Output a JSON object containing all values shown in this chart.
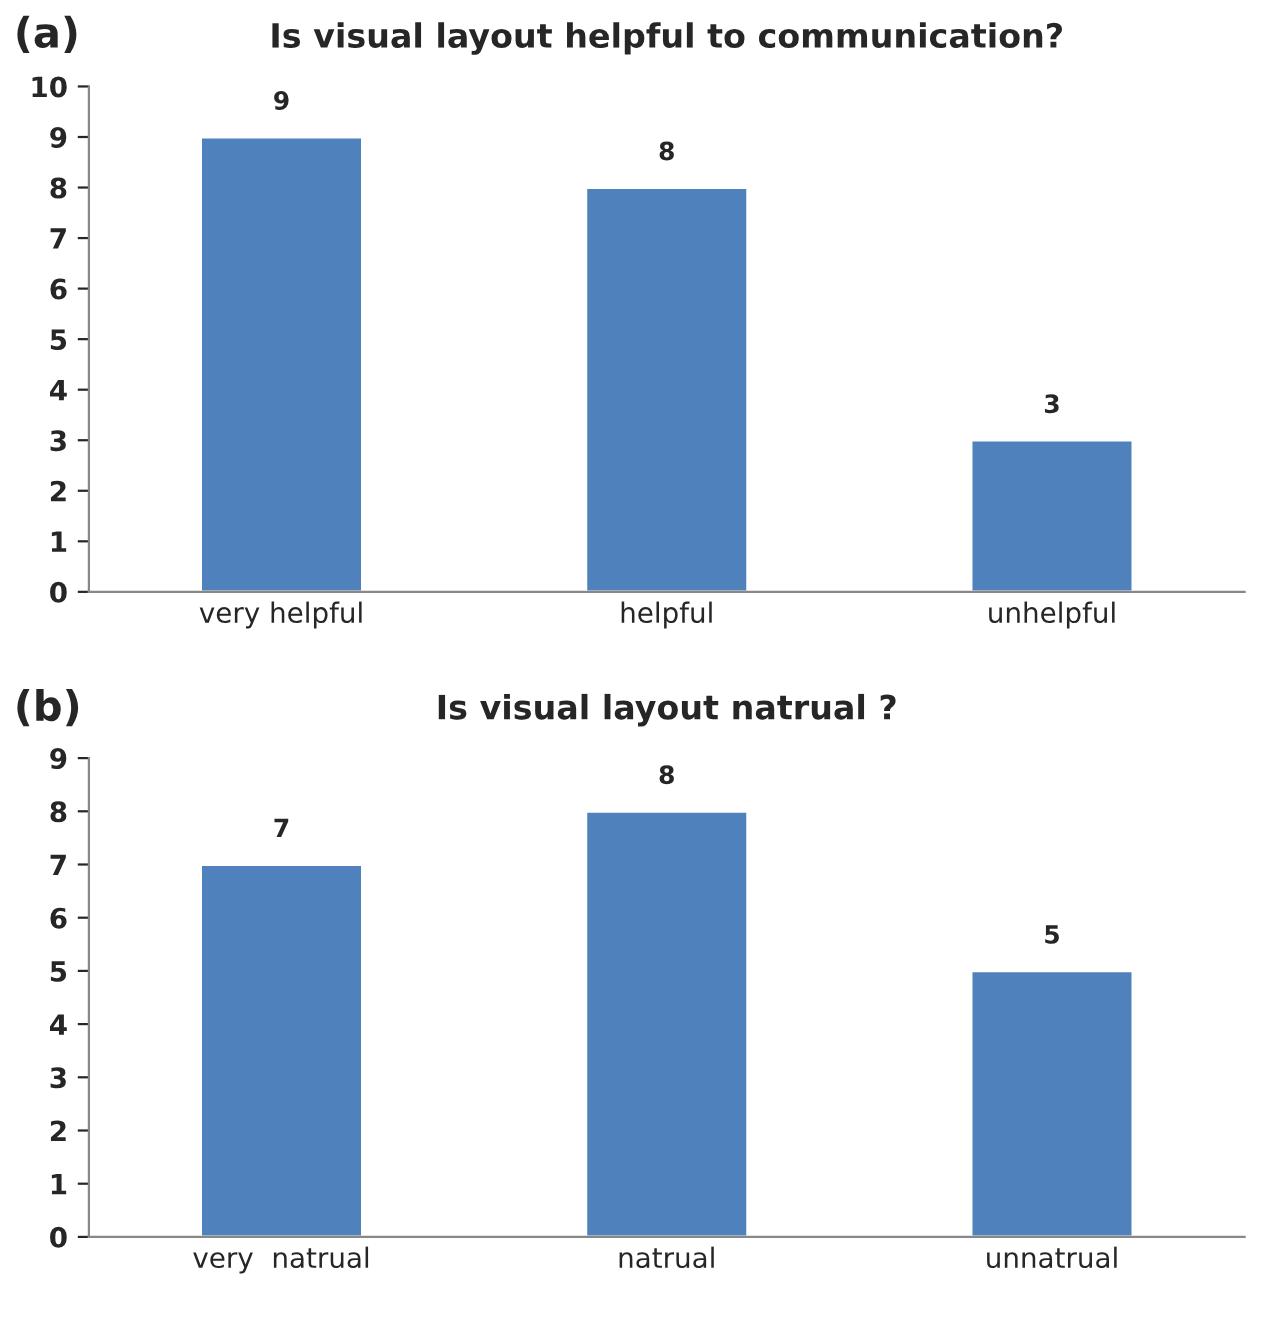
{
  "chart_data": [
    {
      "type": "bar",
      "title": "Is visual layout helpful to communication?",
      "annotations": [
        "(a)"
      ],
      "categories": [
        "very helpful",
        "helpful",
        "unhelpful"
      ],
      "values": [
        9,
        8,
        3
      ],
      "color": "#4f81bd",
      "ylim": [
        0,
        10
      ],
      "yticks": [
        0,
        1,
        2,
        3,
        4,
        5,
        6,
        7,
        8,
        9,
        10
      ],
      "data_labels": true,
      "grid": false,
      "legend": false
    },
    {
      "type": "bar",
      "title": "Is visual layout natrual ?",
      "annotations": [
        "(b)"
      ],
      "categories": [
        "very  natrual",
        "natrual",
        "unnatrual"
      ],
      "values": [
        7,
        8,
        5
      ],
      "color": "#4f81bd",
      "ylim": [
        0,
        9
      ],
      "yticks": [
        0,
        1,
        2,
        3,
        4,
        5,
        6,
        7,
        8,
        9
      ],
      "data_labels": true,
      "grid": false,
      "legend": false
    }
  ]
}
